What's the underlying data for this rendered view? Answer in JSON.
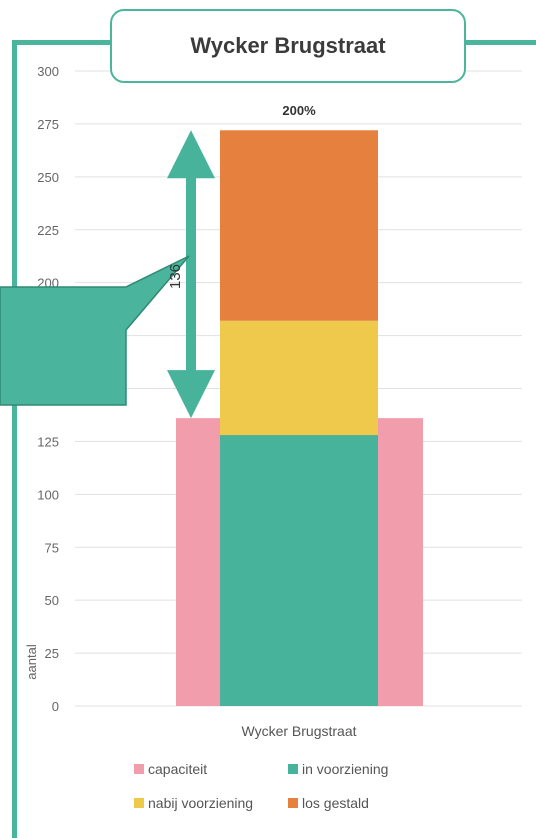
{
  "title": "Wycker Brugstraat",
  "colors": {
    "frame": "#4ab59c",
    "capaciteit": "#f29dab",
    "in_voorziening": "#46b39a",
    "nabij_voorziening": "#efc94c",
    "los_gestald": "#e5803f"
  },
  "callout": {
    "value": "136",
    "from": 136,
    "to": 272
  },
  "chart_data": {
    "type": "bar",
    "stacked": true,
    "categories": [
      "Wycker Brugstraat"
    ],
    "ylim": [
      0,
      300
    ],
    "yticks": [
      "0",
      "25",
      "50",
      "75",
      "100",
      "125",
      "150",
      "175",
      "200",
      "225",
      "250",
      "275",
      "300"
    ],
    "ylabel": "aantal",
    "xlabel": "",
    "grid": true,
    "capacity": {
      "name": "capaciteit",
      "value": 136
    },
    "series": [
      {
        "name": "in voorziening",
        "values": [
          128
        ]
      },
      {
        "name": "nabij voorziening",
        "values": [
          54
        ]
      },
      {
        "name": "los gestald",
        "values": [
          90
        ]
      }
    ],
    "top_label": "200%",
    "legend": [
      "capaciteit",
      "in voorziening",
      "nabij voorziening",
      "los gestald"
    ],
    "legend_position": "bottom"
  }
}
